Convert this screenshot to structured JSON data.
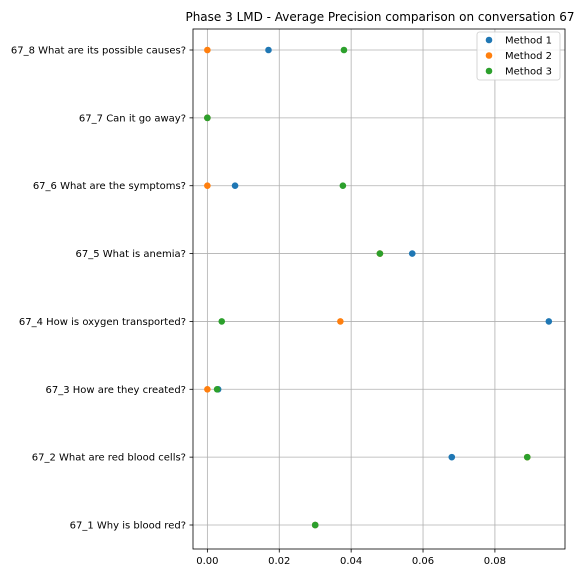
{
  "chart_data": {
    "type": "scatter",
    "title": "Phase 3 LMD - Average Precision comparison on conversation 67",
    "xlabel": "",
    "ylabel": "",
    "categories": [
      "67_1 Why is blood red?",
      "67_2 What are red blood cells?",
      "67_3 How are they created?",
      "67_4 How is oxygen transported?",
      "67_5 What is anemia?",
      "67_6 What are the symptoms?",
      "67_7 Can it go away?",
      "67_8 What are its possible causes?"
    ],
    "xlim": [
      -0.004,
      0.0995
    ],
    "xticks": [
      0.0,
      0.02,
      0.04,
      0.06,
      0.08
    ],
    "xtick_labels": [
      "0.00",
      "0.02",
      "0.04",
      "0.06",
      "0.08"
    ],
    "grid": true,
    "legend_position": "top-right",
    "series": [
      {
        "name": "Method 1",
        "color": "#1f77b4",
        "values": [
          0.03,
          0.068,
          0.003,
          0.095,
          0.057,
          0.0077,
          0.0,
          0.017
        ]
      },
      {
        "name": "Method 2",
        "color": "#ff7f0e",
        "values": [
          0.03,
          0.089,
          0.0,
          0.037,
          0.048,
          0.0,
          0.0,
          0.0
        ]
      },
      {
        "name": "Method 3",
        "color": "#2ca02c",
        "values": [
          0.03,
          0.089,
          0.0027,
          0.004,
          0.048,
          0.0377,
          0.0,
          0.038
        ]
      }
    ]
  }
}
